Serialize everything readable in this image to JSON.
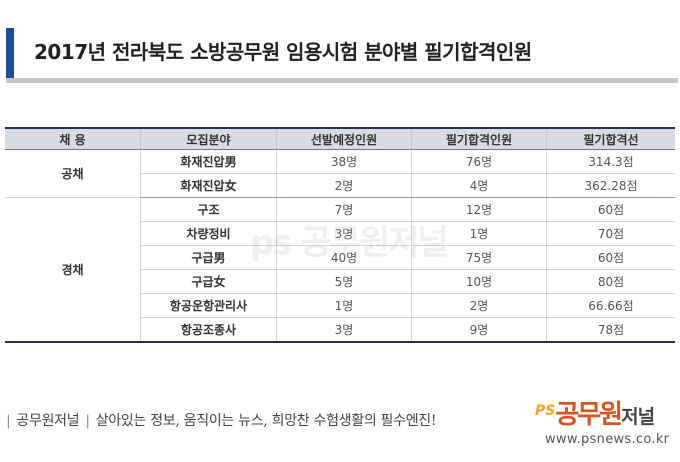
{
  "title": "2017년 전라북도 소방공무원 임용시험 분야별 필기합격인원",
  "table": {
    "headers": [
      "채 용",
      "모집분야",
      "선발예정인원",
      "필기합격인원",
      "필기합격선"
    ],
    "groups": [
      {
        "name": "공채",
        "rows": [
          {
            "field": "화재진압男",
            "planned": "38명",
            "passed": "76명",
            "cutoff": "314.3점"
          },
          {
            "field": "화재진압女",
            "planned": "2명",
            "passed": "4명",
            "cutoff": "362.28점"
          }
        ]
      },
      {
        "name": "경채",
        "rows": [
          {
            "field": "구조",
            "planned": "7명",
            "passed": "12명",
            "cutoff": "60점"
          },
          {
            "field": "차량정비",
            "planned": "3명",
            "passed": "1명",
            "cutoff": "70점"
          },
          {
            "field": "구급男",
            "planned": "40명",
            "passed": "75명",
            "cutoff": "60점"
          },
          {
            "field": "구급女",
            "planned": "5명",
            "passed": "10명",
            "cutoff": "80점"
          },
          {
            "field": "항공운항관리사",
            "planned": "1명",
            "passed": "2명",
            "cutoff": "66.66점"
          },
          {
            "field": "항공조종사",
            "planned": "3명",
            "passed": "9명",
            "cutoff": "78점"
          }
        ]
      }
    ]
  },
  "watermark": "ps 공무원저널",
  "footer": {
    "brand": "공무원저널",
    "tagline": "살아있는 정보, 움직이는 뉴스, 희망찬 수험생활의 필수엔진!"
  },
  "logo": {
    "ps": "PS",
    "name": "공무원",
    "sub": "저널"
  },
  "site_url": "www.psnews.co.kr"
}
